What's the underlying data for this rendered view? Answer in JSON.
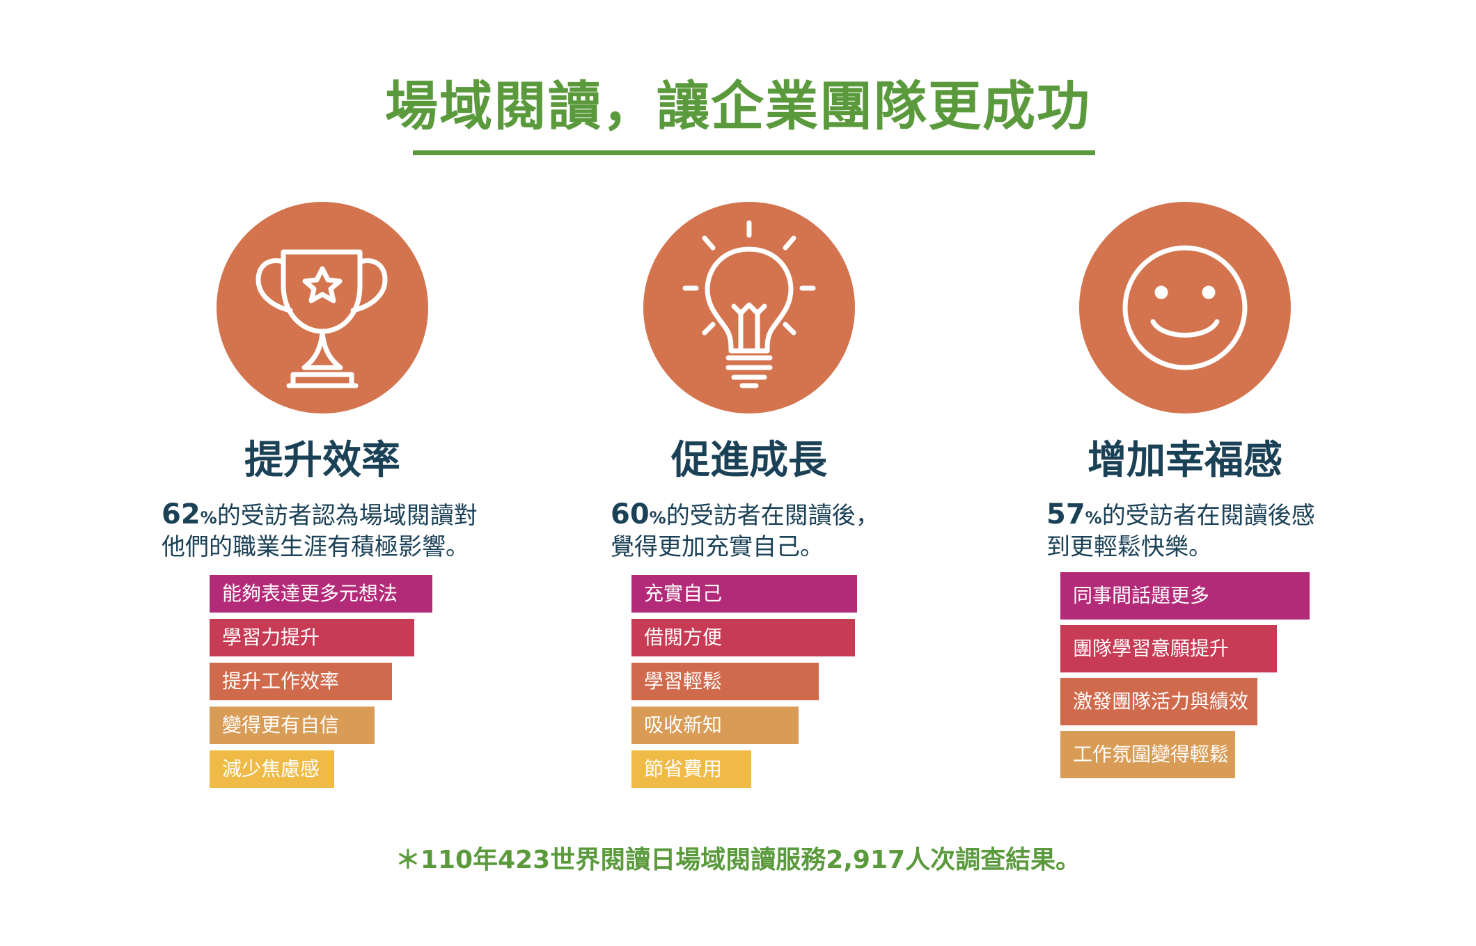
{
  "title": "場域閱讀，讓企業團隊更成功",
  "colors": {
    "green": "#5a9a3c",
    "navy": "#1b4157",
    "circle": "#d3744f",
    "bar_palette": [
      "#b32b78",
      "#c73b54",
      "#d06a4d",
      "#d99c57",
      "#f0ba47"
    ]
  },
  "columns": [
    {
      "icon": "trophy-icon",
      "heading": "提升效率",
      "percent": "62",
      "percent_sign": "%",
      "desc_line1_rest": "的受訪者認為場域閱讀對",
      "desc_line2": "他們的職業生涯有積極影響。"
    },
    {
      "icon": "lightbulb-icon",
      "heading": "促進成長",
      "percent": "60",
      "percent_sign": "%",
      "desc_line1_rest": "的受訪者在閱讀後，",
      "desc_line2": "覺得更加充實自己。"
    },
    {
      "icon": "smiley-icon",
      "heading": "增加幸福感",
      "percent": "57",
      "percent_sign": "%",
      "desc_line1_rest": "的受訪者在閱讀後感",
      "desc_line2": "到更輕鬆快樂。"
    }
  ],
  "chart_data": [
    {
      "type": "bar",
      "orientation": "horizontal",
      "categories": [
        "能夠表達更多元想法",
        "學習力提升",
        "提升工作效率",
        "變得更有自信",
        "減少焦慮感"
      ],
      "values": [
        100,
        92,
        82,
        74,
        56
      ],
      "grid": false
    },
    {
      "type": "bar",
      "orientation": "horizontal",
      "categories": [
        "充實自己",
        "借閱方便",
        "學習輕鬆",
        "吸收新知",
        "節省費用"
      ],
      "values": [
        100,
        99,
        83,
        74,
        53
      ],
      "grid": false
    },
    {
      "type": "bar",
      "orientation": "horizontal",
      "categories": [
        "同事間話題更多",
        "團隊學習意願提升",
        "激發團隊活力與績效",
        "工作氛圍變得輕鬆"
      ],
      "values": [
        100,
        87,
        79,
        70
      ],
      "grid": false
    }
  ],
  "footer": "＊110年423世界閱讀日場域閱讀服務2,917人次調查結果。"
}
